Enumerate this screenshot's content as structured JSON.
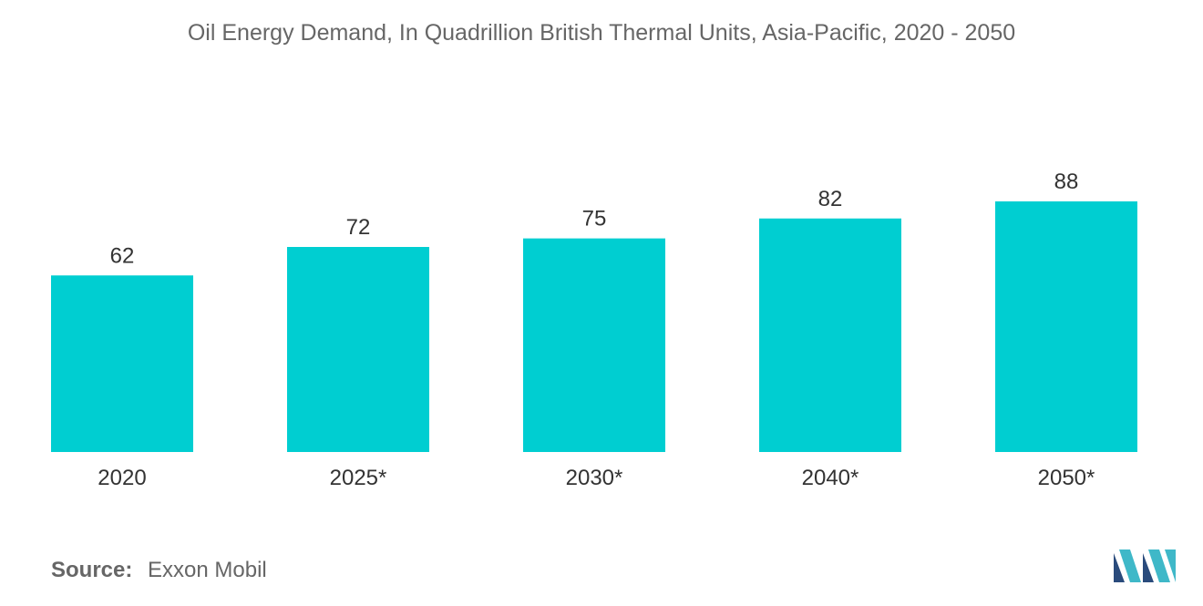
{
  "title": "Oil Energy Demand, In Quadrillion British Thermal Units, Asia-Pacific, 2020 - 2050",
  "source": {
    "label": "Source:",
    "value": "Exxon Mobil"
  },
  "colors": {
    "bar": "#00CED1",
    "logo_dark": "#2a4b7c",
    "logo_light": "#3fb8c8"
  },
  "chart_data": {
    "type": "bar",
    "title": "Oil Energy Demand, In Quadrillion British Thermal Units, Asia-Pacific, 2020 - 2050",
    "categories": [
      "2020",
      "2025*",
      "2030*",
      "2040*",
      "2050*"
    ],
    "values": [
      62,
      72,
      75,
      82,
      88
    ],
    "xlabel": "",
    "ylabel": "",
    "ylim": [
      0,
      88
    ],
    "grid": false,
    "legend": "none"
  }
}
